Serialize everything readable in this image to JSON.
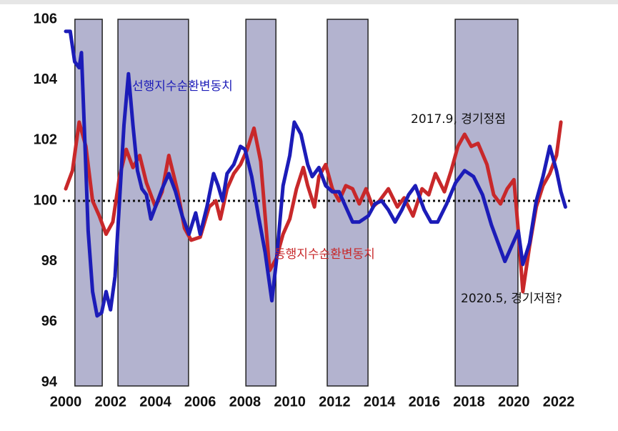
{
  "chart_data": {
    "type": "line",
    "xlim": [
      2000,
      2022
    ],
    "ylim": [
      94,
      106
    ],
    "xticks": [
      2000,
      2002,
      2004,
      2006,
      2008,
      2010,
      2012,
      2014,
      2016,
      2018,
      2020,
      2022
    ],
    "yticks": [
      94,
      96,
      98,
      100,
      102,
      104,
      106
    ],
    "reference_line": 100,
    "shaded_periods": [
      [
        2000.41,
        2001.63
      ],
      [
        2002.33,
        2005.48
      ],
      [
        2008.04,
        2009.38
      ],
      [
        2011.67,
        2013.49
      ],
      [
        2017.38,
        2020.18
      ]
    ],
    "shade_color": "#b3b3cf",
    "series": [
      {
        "name": "선행지수순환변동치",
        "color": "#1c1cb8",
        "x": [
          2000.0,
          2000.2,
          2000.4,
          2000.6,
          2000.7,
          2000.85,
          2001.0,
          2001.2,
          2001.4,
          2001.6,
          2001.8,
          2002.0,
          2002.2,
          2002.4,
          2002.6,
          2002.8,
          2003.0,
          2003.2,
          2003.4,
          2003.6,
          2003.8,
          2004.0,
          2004.3,
          2004.6,
          2004.9,
          2005.2,
          2005.5,
          2005.8,
          2006.0,
          2006.3,
          2006.6,
          2006.8,
          2007.0,
          2007.2,
          2007.5,
          2007.8,
          2008.0,
          2008.3,
          2008.6,
          2008.9,
          2009.2,
          2009.4,
          2009.7,
          2010.0,
          2010.2,
          2010.5,
          2010.8,
          2011.0,
          2011.3,
          2011.6,
          2011.9,
          2012.2,
          2012.5,
          2012.8,
          2013.1,
          2013.5,
          2013.8,
          2014.1,
          2014.4,
          2014.7,
          2015.0,
          2015.3,
          2015.6,
          2016.0,
          2016.3,
          2016.6,
          2017.0,
          2017.4,
          2017.8,
          2018.2,
          2018.6,
          2019.0,
          2019.3,
          2019.6,
          2019.9,
          2020.2,
          2020.4,
          2020.7,
          2021.0,
          2021.3,
          2021.6,
          2021.9,
          2022.1,
          2022.3
        ],
        "values": [
          105.6,
          105.6,
          104.6,
          104.4,
          104.9,
          102,
          99,
          97,
          96.2,
          96.3,
          97.0,
          96.4,
          97.5,
          100,
          102.5,
          104.2,
          102.5,
          101,
          100.4,
          100.2,
          99.4,
          99.8,
          100.4,
          100.9,
          100.3,
          99.5,
          98.9,
          99.6,
          98.9,
          99.8,
          100.9,
          100.5,
          100.0,
          100.9,
          101.2,
          101.8,
          101.7,
          100.8,
          99.5,
          98.3,
          96.7,
          98.0,
          100.5,
          101.5,
          102.6,
          102.2,
          101.2,
          100.8,
          101.1,
          100.5,
          100.3,
          100.3,
          99.8,
          99.3,
          99.3,
          99.5,
          99.9,
          100,
          99.7,
          99.3,
          99.7,
          100.2,
          100.5,
          99.7,
          99.3,
          99.3,
          99.9,
          100.6,
          101.0,
          100.8,
          100.2,
          99.2,
          98.6,
          98.0,
          98.5,
          99,
          97.9,
          98.6,
          100.0,
          100.8,
          101.8,
          101.0,
          100.3,
          99.8
        ]
      },
      {
        "name": "동행지수순환변동치",
        "color": "#c8282a",
        "x": [
          2000.0,
          2000.3,
          2000.6,
          2000.9,
          2001.2,
          2001.5,
          2001.8,
          2002.1,
          2002.4,
          2002.7,
          2003.0,
          2003.3,
          2003.6,
          2004.0,
          2004.3,
          2004.6,
          2005.0,
          2005.3,
          2005.6,
          2006.0,
          2006.4,
          2006.7,
          2006.9,
          2007.2,
          2007.5,
          2007.8,
          2008.1,
          2008.4,
          2008.7,
          2008.9,
          2009.1,
          2009.4,
          2009.7,
          2010.0,
          2010.3,
          2010.6,
          2010.8,
          2011.1,
          2011.3,
          2011.6,
          2011.9,
          2012.2,
          2012.5,
          2012.8,
          2013.1,
          2013.4,
          2013.7,
          2014.0,
          2014.4,
          2014.8,
          2015.1,
          2015.5,
          2015.9,
          2016.2,
          2016.5,
          2016.9,
          2017.2,
          2017.5,
          2017.8,
          2018.1,
          2018.4,
          2018.8,
          2019.1,
          2019.4,
          2019.7,
          2020.0,
          2020.2,
          2020.4,
          2020.7,
          2021.0,
          2021.3,
          2021.6,
          2021.9,
          2022.1
        ],
        "values": [
          100.4,
          101.0,
          102.6,
          101.8,
          100.0,
          99.5,
          98.9,
          99.3,
          100.8,
          101.7,
          101.1,
          101.5,
          100.6,
          99.8,
          100.3,
          101.5,
          100.3,
          99.1,
          98.7,
          98.8,
          99.8,
          100.0,
          99.4,
          100.4,
          100.9,
          101.2,
          101.7,
          102.4,
          101.3,
          99.5,
          97.7,
          98.1,
          98.9,
          99.4,
          100.4,
          101.1,
          100.5,
          99.8,
          100.8,
          101.2,
          100.4,
          100.0,
          100.5,
          100.4,
          99.9,
          100.4,
          99.8,
          100.0,
          100.4,
          99.8,
          100.1,
          99.5,
          100.4,
          100.2,
          100.9,
          100.3,
          101.0,
          101.8,
          102.2,
          101.8,
          101.9,
          101.2,
          100.2,
          99.9,
          100.4,
          100.7,
          99.0,
          97.0,
          98.5,
          99.8,
          100.5,
          100.9,
          101.5,
          102.6
        ]
      }
    ],
    "annotations": [
      "2017.9, 경기정점",
      "2020.5, 경기저점?"
    ]
  }
}
